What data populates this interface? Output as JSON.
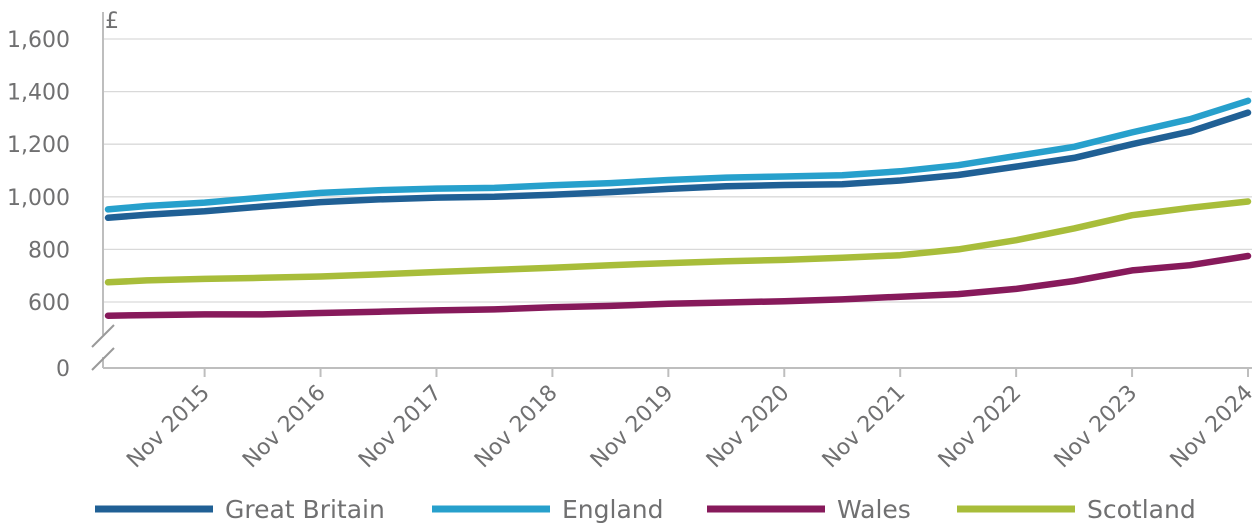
{
  "chart_data": {
    "type": "line",
    "y_unit": "£",
    "y_ticks": [
      0,
      600,
      800,
      1000,
      1200,
      1400,
      1600
    ],
    "y_tick_labels": [
      "0",
      "600",
      "800",
      "1,000",
      "1,200",
      "1,400",
      "1,600"
    ],
    "ylim": [
      500,
      1600
    ],
    "axis_break": true,
    "grid": true,
    "x_start": "2015-01",
    "x_end": "2024-11",
    "x_ticks": [
      "Nov 2015",
      "Nov 2016",
      "Nov 2017",
      "Nov 2018",
      "Nov 2019",
      "Nov 2020",
      "Nov 2021",
      "Nov 2022",
      "Nov 2023",
      "Nov 2024"
    ],
    "x": [
      "2015-01",
      "2015-05",
      "2015-11",
      "2016-05",
      "2016-11",
      "2017-05",
      "2017-11",
      "2018-05",
      "2018-11",
      "2019-05",
      "2019-11",
      "2020-05",
      "2020-11",
      "2021-05",
      "2021-11",
      "2022-05",
      "2022-11",
      "2023-05",
      "2023-11",
      "2024-05",
      "2024-11"
    ],
    "legend_position": "bottom",
    "series": [
      {
        "name": "Great Britain",
        "color": "#206095",
        "values": [
          920,
          932,
          945,
          963,
          980,
          990,
          997,
          1000,
          1008,
          1018,
          1030,
          1040,
          1045,
          1048,
          1062,
          1083,
          1115,
          1148,
          1200,
          1248,
          1320
        ]
      },
      {
        "name": "England",
        "color": "#27A0CC",
        "values": [
          952,
          965,
          978,
          997,
          1015,
          1025,
          1031,
          1034,
          1044,
          1052,
          1064,
          1073,
          1077,
          1082,
          1097,
          1120,
          1155,
          1190,
          1245,
          1295,
          1365
        ]
      },
      {
        "name": "Wales",
        "color": "#871A5B",
        "values": [
          548,
          550,
          553,
          553,
          558,
          563,
          568,
          572,
          580,
          585,
          593,
          598,
          603,
          610,
          620,
          630,
          650,
          680,
          720,
          740,
          775
        ]
      },
      {
        "name": "Scotland",
        "color": "#A8BD3A",
        "values": [
          675,
          682,
          688,
          692,
          697,
          705,
          714,
          722,
          730,
          740,
          748,
          755,
          760,
          768,
          778,
          800,
          835,
          880,
          930,
          958,
          982
        ]
      }
    ]
  }
}
